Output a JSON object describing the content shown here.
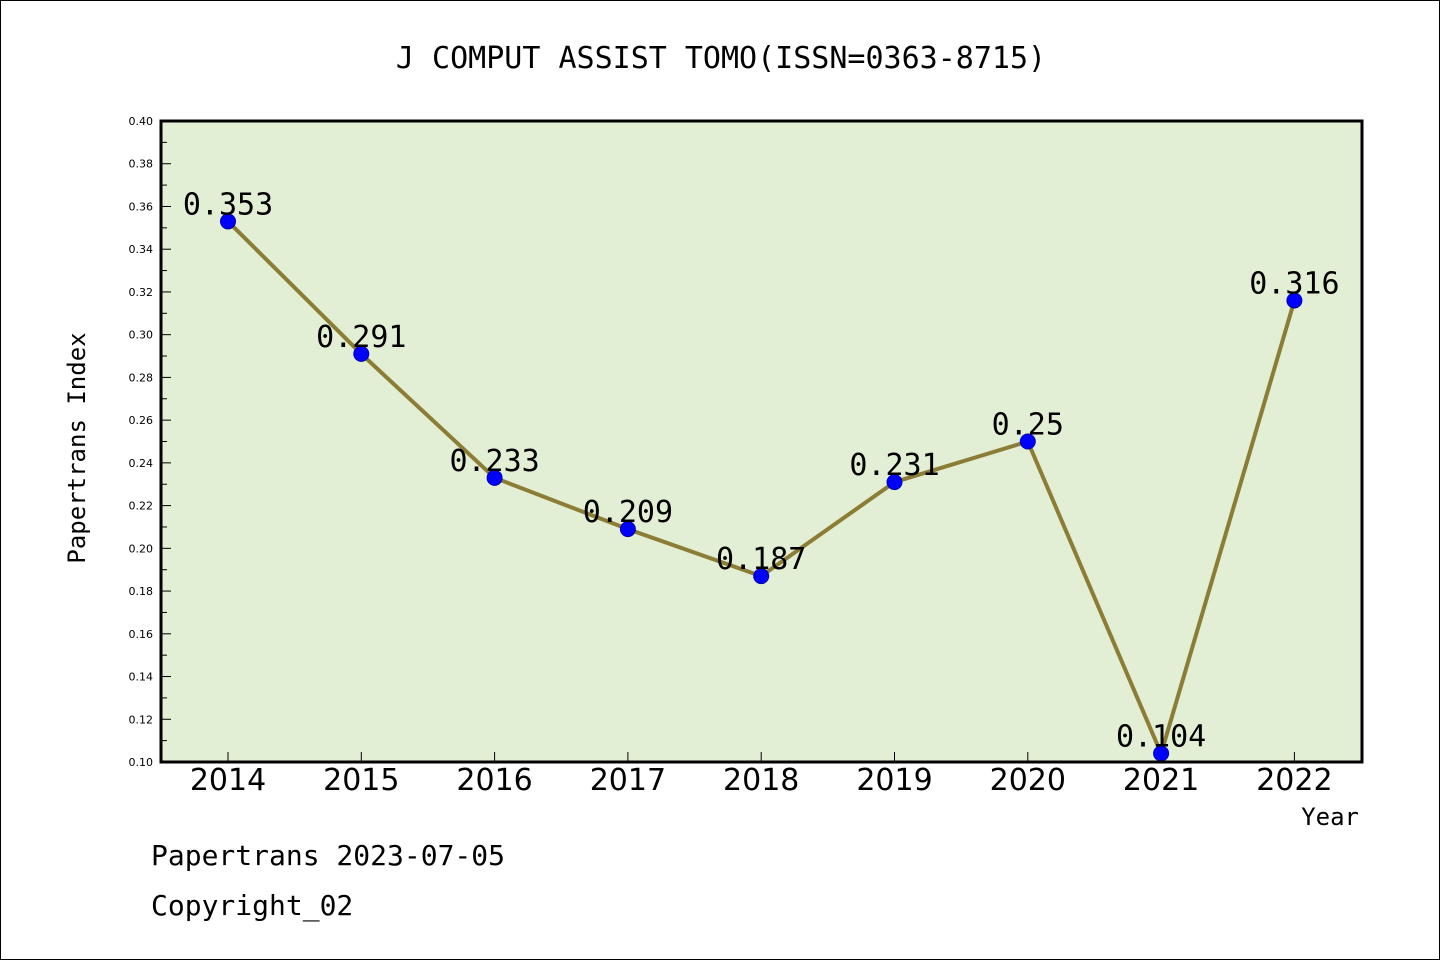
{
  "chart_data": {
    "type": "line",
    "title": "J COMPUT ASSIST TOMO(ISSN=0363-8715)",
    "xlabel": "Year",
    "ylabel": "Papertrans Index",
    "categories": [
      "2014",
      "2015",
      "2016",
      "2017",
      "2018",
      "2019",
      "2020",
      "2021",
      "2022"
    ],
    "series": [
      {
        "values": [
          0.353,
          0.291,
          0.233,
          0.209,
          0.187,
          0.231,
          0.25,
          0.104,
          0.316
        ],
        "labels": [
          "0.353",
          "0.291",
          "0.233",
          "0.209",
          "0.187",
          "0.231",
          "0.25",
          "0.104",
          "0.316"
        ],
        "line_color": "#8b7d35",
        "marker_color": "#0000ff"
      }
    ],
    "ylim": [
      0.1,
      0.4
    ],
    "yticks": [
      "0.10",
      "0.12",
      "0.14",
      "0.16",
      "0.18",
      "0.20",
      "0.22",
      "0.24",
      "0.26",
      "0.28",
      "0.30",
      "0.32",
      "0.34",
      "0.36",
      "0.38",
      "0.40"
    ],
    "grid": false,
    "plot_background": "#e2efd4"
  },
  "footer": {
    "line1": "Papertrans 2023-07-05",
    "line2": "Copyright_02"
  }
}
